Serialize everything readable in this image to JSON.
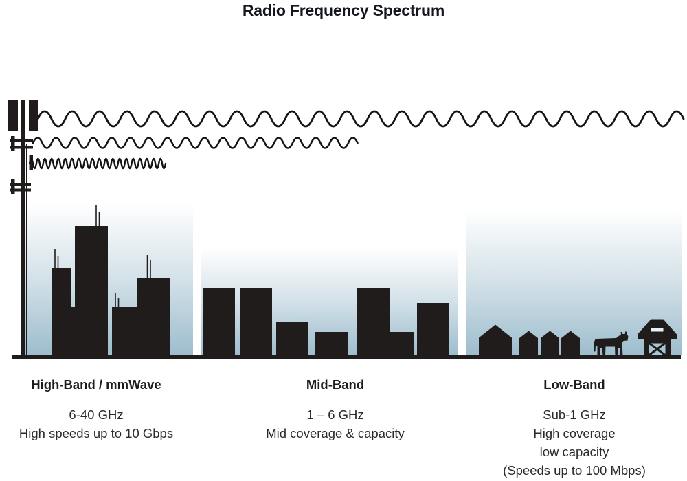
{
  "title": "Radio Frequency Spectrum",
  "bands": [
    {
      "id": "high-band",
      "label": "High-Band / mmWave",
      "range": "6-40 GHz",
      "lines": [
        "High speeds up to 10 Gbps"
      ]
    },
    {
      "id": "mid-band",
      "label": "Mid-Band",
      "range": "1 – 6 GHz",
      "lines": [
        "Mid coverage & capacity"
      ]
    },
    {
      "id": "low-band",
      "label": "Low-Band",
      "range": "Sub-1 GHz",
      "lines": [
        "High coverage",
        "low capacity",
        "(Speeds up to 100 Mbps)"
      ]
    }
  ],
  "icons": [
    "cell-tower-icon",
    "radio-wave-long-icon",
    "radio-wave-medium-icon",
    "radio-wave-short-icon",
    "city-skyline-icon",
    "midrise-buildings-icon",
    "house-icon",
    "cow-icon",
    "barn-icon"
  ],
  "colors": {
    "silhouette": "#201c1b",
    "wave_stroke": "#141414",
    "sky_top": "#ffffff",
    "sky_bottom": "#9dbdcd",
    "text": "#2e2a2b",
    "title_text": "#14171e"
  }
}
